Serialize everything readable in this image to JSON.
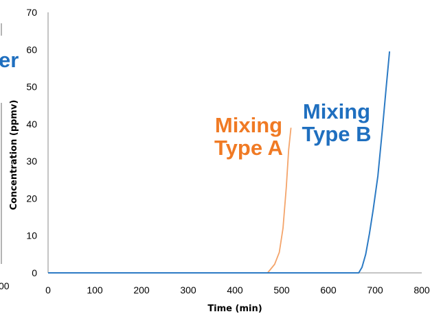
{
  "left_fragment": {
    "text": "er",
    "color": "#1f6fbf",
    "tick_label": "00"
  },
  "chart_data": {
    "type": "line",
    "title": "",
    "xlabel": "Time (min)",
    "ylabel": "Concentration (ppmv)",
    "xlim": [
      0,
      800
    ],
    "ylim": [
      0,
      70
    ],
    "x_ticks": [
      0,
      100,
      200,
      300,
      400,
      500,
      600,
      700,
      800
    ],
    "y_ticks": [
      0,
      10,
      20,
      30,
      40,
      50,
      60,
      70
    ],
    "grid": false,
    "legend": "none",
    "series": [
      {
        "color": "#f4a46a",
        "label_color": "#f07a24",
        "label_lines": [
          "Mixing",
          "Type A"
        ],
        "points": [
          [
            470,
            0
          ],
          [
            485,
            2.3
          ],
          [
            495,
            5.5
          ],
          [
            503,
            12
          ],
          [
            510,
            23
          ],
          [
            515,
            33
          ],
          [
            520,
            39
          ]
        ]
      },
      {
        "color": "#2b7ac4",
        "label_color": "#1f6fbf",
        "label_lines": [
          "Mixing",
          "Type B"
        ],
        "points": [
          [
            0,
            0
          ],
          [
            665,
            0
          ],
          [
            672,
            1.5
          ],
          [
            680,
            5
          ],
          [
            688,
            10.5
          ],
          [
            696,
            17
          ],
          [
            706,
            26
          ],
          [
            716,
            39
          ],
          [
            724,
            50
          ],
          [
            731,
            59.5
          ]
        ]
      }
    ]
  }
}
